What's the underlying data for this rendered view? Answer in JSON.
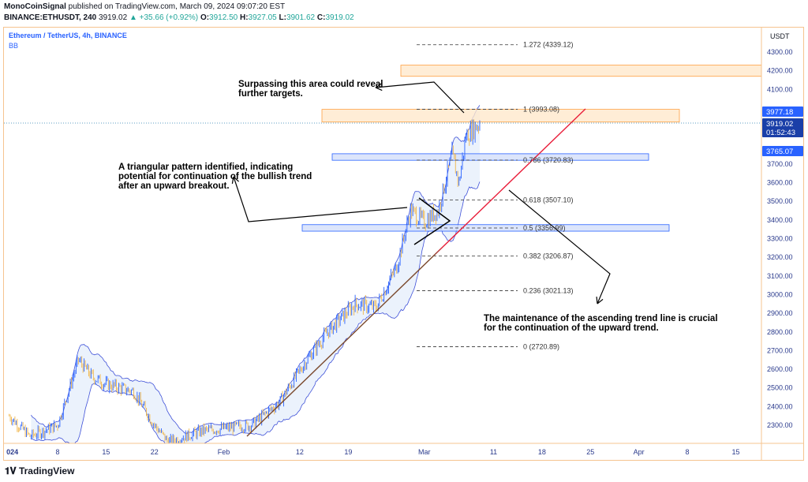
{
  "header": {
    "author": "MonoCoinSignal",
    "published": "published on TradingView.com, March 09, 2024 09:07:20 EST",
    "symbol": "BINANCE:ETHUSDT, 240",
    "last": "3919.02",
    "change": "▲ +35.66 (+0.92%)",
    "o_label": "O:",
    "o": "3912.50",
    "h_label": "H:",
    "h": "3927.05",
    "l_label": "L:",
    "l": "3901.62",
    "c_label": "C:",
    "c": "3919.02"
  },
  "legend": {
    "title": "Ethereum / TetherUS, 4h, BINANCE",
    "indicator": "BB"
  },
  "annotations": {
    "targets": "Surpassing this area could reveal further targets.",
    "triangle": "A triangular pattern identified, indicating potential for continuation of the bullish trend after an upward breakout.",
    "trendline": "The maintenance of the ascending trend line is crucial for the continuation of the upward trend."
  },
  "price_tags": {
    "upper_bb": "3977.18",
    "last": "3919.02",
    "countdown": "01:52:43",
    "lower_bb": "3765.07"
  },
  "branding": "TradingView",
  "colors": {
    "up": "#2962ff",
    "down": "#f0b64a",
    "bb": "#3f51d8",
    "trend_red": "#e91e3a",
    "trend_brown": "#7b4a2e",
    "zone_orange": "#ff9f40",
    "zone_blue": "#2962ff"
  },
  "chart_data": {
    "type": "candlestick",
    "currency": "USDT",
    "y_ticks": [
      4300,
      4200,
      4100,
      4000,
      3900,
      3800,
      3700,
      3600,
      3500,
      3400,
      3300,
      3200,
      3100,
      3000,
      2900,
      2800,
      2700,
      2600,
      2500,
      2400,
      2300
    ],
    "ylim": [
      2230,
      4420
    ],
    "x_ticks": [
      {
        "date": "2024-01-01",
        "label": "024"
      },
      {
        "date": "2024-01-08",
        "label": "8"
      },
      {
        "date": "2024-01-15",
        "label": "15"
      },
      {
        "date": "2024-01-22",
        "label": "22"
      },
      {
        "date": "2024-02-01",
        "label": "Feb"
      },
      {
        "date": "2024-02-12",
        "label": "12"
      },
      {
        "date": "2024-02-19",
        "label": "19"
      },
      {
        "date": "2024-03-01",
        "label": "Mar"
      },
      {
        "date": "2024-03-11",
        "label": "11"
      },
      {
        "date": "2024-03-18",
        "label": "18"
      },
      {
        "date": "2024-03-25",
        "label": "25"
      },
      {
        "date": "2024-04-01",
        "label": "Apr"
      },
      {
        "date": "2024-04-08",
        "label": "8"
      },
      {
        "date": "2024-04-15",
        "label": "15"
      }
    ],
    "price_path": [
      [
        "2024-01-01",
        2350
      ],
      [
        "2024-01-04",
        2240
      ],
      [
        "2024-01-08",
        2300
      ],
      [
        "2024-01-11",
        2650
      ],
      [
        "2024-01-13",
        2560
      ],
      [
        "2024-01-15",
        2520
      ],
      [
        "2024-01-19",
        2480
      ],
      [
        "2024-01-22",
        2300
      ],
      [
        "2024-01-24",
        2210
      ],
      [
        "2024-01-29",
        2270
      ],
      [
        "2024-02-05",
        2300
      ],
      [
        "2024-02-09",
        2420
      ],
      [
        "2024-02-13",
        2650
      ],
      [
        "2024-02-16",
        2800
      ],
      [
        "2024-02-20",
        2950
      ],
      [
        "2024-02-23",
        2930
      ],
      [
        "2024-02-26",
        3150
      ],
      [
        "2024-02-28",
        3450
      ],
      [
        "2024-03-01",
        3390
      ],
      [
        "2024-03-03",
        3450
      ],
      [
        "2024-03-05",
        3750
      ],
      [
        "2024-03-06",
        3600
      ],
      [
        "2024-03-07",
        3850
      ],
      [
        "2024-03-09",
        3919.02
      ]
    ],
    "fib_levels": [
      {
        "ratio": "1.272",
        "price": "4339.12"
      },
      {
        "ratio": "1",
        "price": "3993.08"
      },
      {
        "ratio": "0.786",
        "price": "3720.83"
      },
      {
        "ratio": "0.618",
        "price": "3507.10"
      },
      {
        "ratio": "0.5",
        "price": "3356.99"
      },
      {
        "ratio": "0.382",
        "price": "3206.87"
      },
      {
        "ratio": "0.236",
        "price": "3021.13"
      },
      {
        "ratio": "0",
        "price": "2720.89"
      }
    ],
    "zones": [
      {
        "color": "orange",
        "from": 4170,
        "to": 4230
      },
      {
        "color": "orange",
        "from": 3925,
        "to": 3993
      },
      {
        "color": "blue",
        "from": 3720,
        "to": 3755
      },
      {
        "color": "blue",
        "from": 3340,
        "to": 3375
      }
    ],
    "indicator": "Bollinger Bands"
  }
}
